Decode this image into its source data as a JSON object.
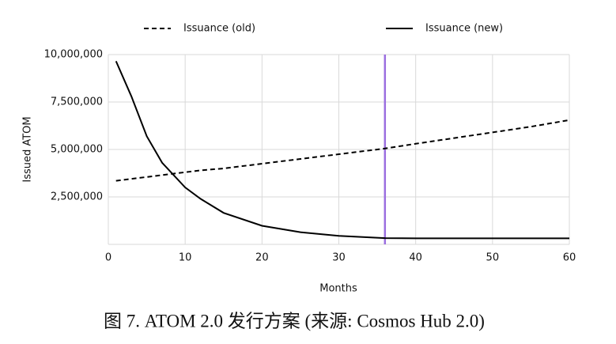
{
  "chart_data": {
    "type": "line",
    "x_label": "Months",
    "y_label": "Issued ATOM",
    "x": [
      1,
      3,
      5,
      7,
      10,
      12,
      15,
      20,
      25,
      30,
      36,
      40,
      45,
      50,
      55,
      60
    ],
    "series": [
      {
        "name": "Issuance (old)",
        "color": "#000000",
        "dash": true,
        "values": [
          3350000,
          3450000,
          3550000,
          3650000,
          3800000,
          3900000,
          4000000,
          4250000,
          4500000,
          4750000,
          5050000,
          5300000,
          5600000,
          5900000,
          6200000,
          6550000
        ]
      },
      {
        "name": "Issuance (new)",
        "color": "#000000",
        "dash": false,
        "values": [
          9650000,
          7800000,
          5700000,
          4300000,
          3000000,
          2400000,
          1660000,
          980000,
          640000,
          450000,
          330000,
          320000,
          320000,
          320000,
          320000,
          320000
        ]
      }
    ],
    "vline": 36,
    "vline_color": "#9b6fe0",
    "xlim": [
      0,
      60
    ],
    "xticks": [
      0,
      10,
      20,
      30,
      40,
      50,
      60
    ],
    "ylim": [
      0,
      10000000
    ],
    "yticks": [
      {
        "value": 2500000,
        "label": "2,500,000"
      },
      {
        "value": 5000000,
        "label": "5,000,000"
      },
      {
        "value": 7500000,
        "label": "7,500,000"
      },
      {
        "value": 10000000,
        "label": "10,000,000"
      }
    ],
    "grid": true,
    "caption": "图 7. ATOM 2.0  发行方案 (来源: Cosmos Hub 2.0)"
  }
}
